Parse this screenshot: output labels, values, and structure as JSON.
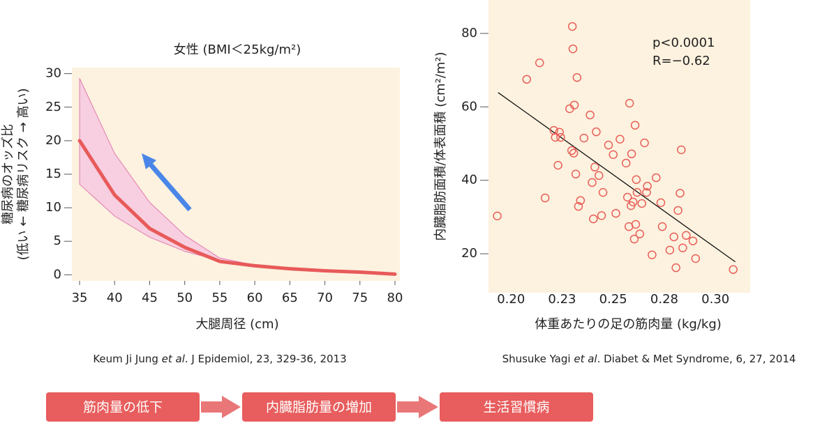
{
  "chart_data": [
    {
      "type": "line",
      "title": "女性 (BMI＜25kg/m²)",
      "x_label": "大腿周径 (cm)",
      "y_label": [
        "糖尿病のオッズ比",
        "(低い ← 糖尿病リスク → 高い)"
      ],
      "x": [
        35,
        40,
        45,
        50,
        55,
        60,
        65,
        70,
        75,
        80
      ],
      "series": [
        {
          "color": "#e85a5a",
          "values": [
            20,
            11.9,
            6.9,
            4.1,
            2.0,
            1.35,
            0.9,
            0.6,
            0.4,
            0.1
          ]
        }
      ],
      "band": {
        "color": "#f7cfe0",
        "upper": [
          29.3,
          18.1,
          10.8,
          5.9,
          2.5,
          1.45,
          0.95,
          0.65,
          0.42,
          0.12
        ],
        "lower": [
          13.5,
          8.75,
          5.6,
          3.5,
          2.1,
          1.25,
          0.85,
          0.55,
          0.38,
          0.08
        ]
      },
      "background": "#fdf2df",
      "xlim": [
        33.9,
        80.7
      ],
      "xticks": [
        35,
        40,
        45,
        50,
        55,
        60,
        65,
        70,
        75,
        80
      ],
      "ylim": [
        -0.9,
        30.9
      ],
      "yticks": [
        0,
        5,
        10,
        15,
        20,
        25,
        30
      ],
      "source": [
        "Keum Ji Jung ",
        "et al",
        ". J Epidemiol, 23, 329-36, 2013"
      ]
    },
    {
      "type": "scatter",
      "x_label": "体重あたりの足の筋肉量 (kg/kg)",
      "y_label": "内臓脂肪面積/体表面積 (cm²/m²)",
      "color": "#e8605a",
      "background": "#fdf2df",
      "x": [
        0.1933,
        0.2077,
        0.214,
        0.2167,
        0.221,
        0.2217,
        0.223,
        0.2237,
        0.2243,
        0.2287,
        0.2297,
        0.23,
        0.2303,
        0.2307,
        0.231,
        0.2317,
        0.2323,
        0.233,
        0.234,
        0.2357,
        0.2387,
        0.2397,
        0.2403,
        0.241,
        0.2417,
        0.243,
        0.2443,
        0.245,
        0.2477,
        0.25,
        0.2513,
        0.2533,
        0.2563,
        0.257,
        0.2577,
        0.258,
        0.2587,
        0.259,
        0.2597,
        0.2603,
        0.2607,
        0.261,
        0.2613,
        0.2617,
        0.263,
        0.264,
        0.2653,
        0.2663,
        0.2667,
        0.269,
        0.271,
        0.2733,
        0.274,
        0.2777,
        0.2797,
        0.2807,
        0.2817,
        0.2827,
        0.2833,
        0.284,
        0.2857,
        0.289,
        0.2903,
        0.3087
      ],
      "y": [
        30.3,
        67.5,
        72.0,
        35.2,
        53.6,
        51.7,
        44.1,
        53.1,
        51.7,
        59.5,
        48.1,
        81.9,
        75.8,
        47.4,
        60.5,
        41.7,
        68.0,
        32.9,
        34.5,
        51.5,
        57.8,
        39.4,
        29.5,
        43.6,
        53.2,
        41.3,
        30.4,
        36.7,
        49.6,
        47.0,
        31.0,
        51.2,
        44.7,
        35.4,
        27.4,
        61.0,
        33.1,
        47.2,
        34.1,
        24.0,
        55.0,
        28.0,
        40.2,
        36.7,
        25.4,
        33.7,
        50.2,
        36.7,
        38.4,
        19.7,
        40.7,
        33.9,
        27.4,
        21.0,
        24.6,
        16.2,
        31.8,
        36.5,
        48.3,
        21.6,
        25.0,
        23.5,
        18.7,
        15.7
      ],
      "trendline": {
        "x": [
          0.1937,
          0.3097
        ],
        "y": [
          63.9,
          17.8
        ]
      },
      "annotations": [
        "p<0.0001",
        "R=−0.62"
      ],
      "xlim": [
        0.189,
        0.317
      ],
      "xticks": [
        {
          "value": 0.2,
          "label": "0.20"
        },
        {
          "value": 0.225,
          "label": "0.23"
        },
        0.25,
        {
          "value": 0.275,
          "label": "0.28"
        },
        {
          "value": 0.3,
          "label": "0.30"
        }
      ],
      "ylim": [
        9.4,
        89.1
      ],
      "yticks": [
        20,
        40,
        60,
        80
      ],
      "source": [
        "Shusuke Yagi ",
        "et al",
        ". Diabet & Met Syndrome, 6, 27, 2014"
      ]
    }
  ],
  "flow": [
    "筋肉量の低下",
    "内臓脂肪量の増加",
    "生活習慣病"
  ]
}
